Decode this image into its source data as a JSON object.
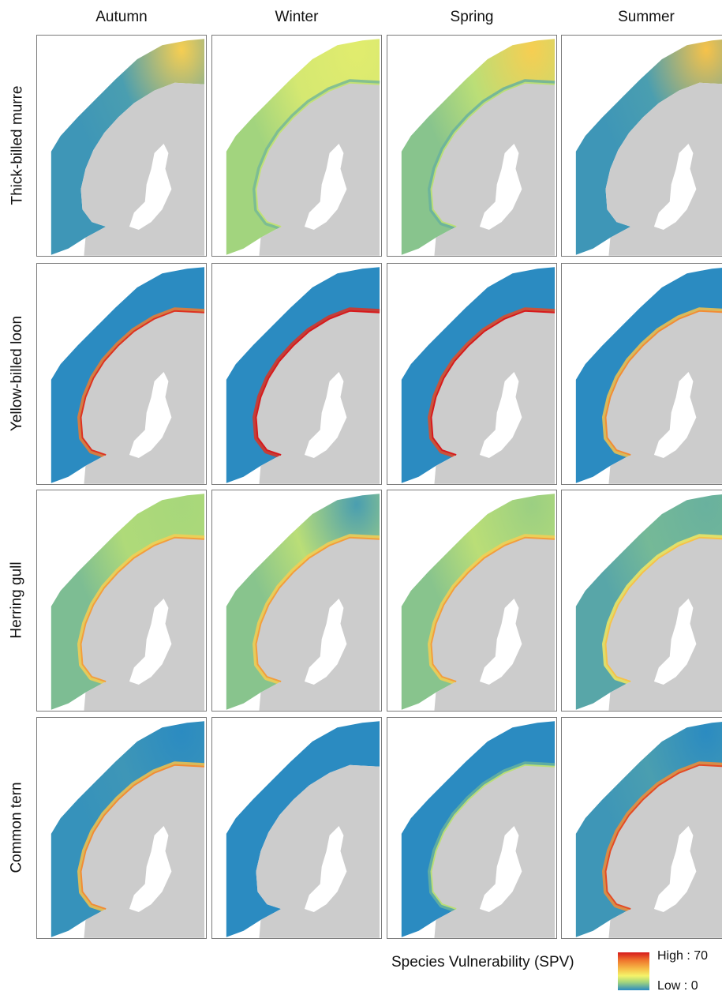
{
  "seasons": [
    "Autumn",
    "Winter",
    "Spring",
    "Summer"
  ],
  "species": [
    "Thick-billed murre",
    "Yellow-billed loon",
    "Herring gull",
    "Common tern"
  ],
  "legend": {
    "title": "Species Vulnerability (SPV)",
    "high_label": "High : 70",
    "low_label": "Low : 0",
    "colors": [
      "#d7191c",
      "#f07a2e",
      "#f6c24a",
      "#f4f36a",
      "#a7d77b",
      "#2b8bc1"
    ]
  },
  "colors": {
    "land": "#cccccc",
    "low": "#2b8bc1",
    "mid": "#f4f36a",
    "high": "#d7191c",
    "panel_border": "#7a7a7a"
  },
  "panels": [
    {
      "species": "Thick-billed murre",
      "season": "Autumn",
      "north_level": 0.55,
      "offshore_level": 0.05,
      "coast_level": 0.05
    },
    {
      "species": "Thick-billed murre",
      "season": "Winter",
      "north_level": 0.35,
      "offshore_level": 0.32,
      "coast_level": 0.12
    },
    {
      "species": "Thick-billed murre",
      "season": "Spring",
      "north_level": 0.55,
      "offshore_level": 0.25,
      "coast_level": 0.1
    },
    {
      "species": "Thick-billed murre",
      "season": "Summer",
      "north_level": 0.6,
      "offshore_level": 0.05,
      "coast_level": 0.05
    },
    {
      "species": "Yellow-billed loon",
      "season": "Autumn",
      "north_level": 0.0,
      "offshore_level": 0.0,
      "coast_level": 0.8
    },
    {
      "species": "Yellow-billed loon",
      "season": "Winter",
      "north_level": 0.0,
      "offshore_level": 0.0,
      "coast_level": 0.95
    },
    {
      "species": "Yellow-billed loon",
      "season": "Spring",
      "north_level": 0.0,
      "offshore_level": 0.0,
      "coast_level": 0.9
    },
    {
      "species": "Yellow-billed loon",
      "season": "Summer",
      "north_level": 0.0,
      "offshore_level": 0.0,
      "coast_level": 0.6
    },
    {
      "species": "Herring gull",
      "season": "Autumn",
      "north_level": 0.2,
      "offshore_level": 0.22,
      "coast_level": 0.55
    },
    {
      "species": "Herring gull",
      "season": "Winter",
      "north_level": 0.05,
      "offshore_level": 0.25,
      "coast_level": 0.55
    },
    {
      "species": "Herring gull",
      "season": "Spring",
      "north_level": 0.18,
      "offshore_level": 0.25,
      "coast_level": 0.55
    },
    {
      "species": "Herring gull",
      "season": "Summer",
      "north_level": 0.1,
      "offshore_level": 0.12,
      "coast_level": 0.45
    },
    {
      "species": "Common tern",
      "season": "Autumn",
      "north_level": 0.0,
      "offshore_level": 0.03,
      "coast_level": 0.6
    },
    {
      "species": "Common tern",
      "season": "Winter",
      "north_level": 0.0,
      "offshore_level": 0.0,
      "coast_level": 0.0
    },
    {
      "species": "Common tern",
      "season": "Spring",
      "north_level": 0.0,
      "offshore_level": 0.0,
      "coast_level": 0.1
    },
    {
      "species": "Common tern",
      "season": "Summer",
      "north_level": 0.0,
      "offshore_level": 0.05,
      "coast_level": 0.75
    }
  ]
}
